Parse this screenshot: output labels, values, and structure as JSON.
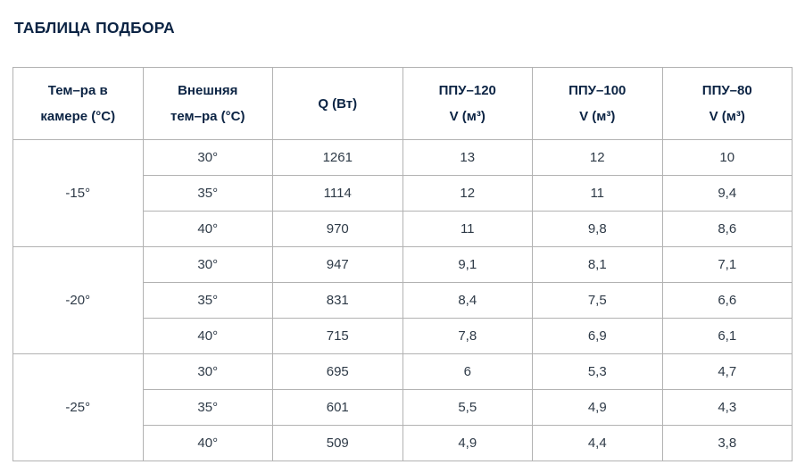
{
  "page": {
    "title": "ТАБЛИЦА ПОДБОРА"
  },
  "colors": {
    "title_text": "#0c2444",
    "header_text": "#0c2444",
    "body_text": "#2e3a47",
    "table_border": "#b2b2b2",
    "background": "#ffffff"
  },
  "table": {
    "headers": [
      {
        "lines": [
          "Тем–ра в",
          "камере (°С)"
        ]
      },
      {
        "lines": [
          "Внешняя",
          "тем–ра (°С)"
        ]
      },
      {
        "lines": [
          "Q (Вт)"
        ]
      },
      {
        "lines": [
          "ППУ–120",
          "V (м³)"
        ]
      },
      {
        "lines": [
          "ППУ–100",
          "V (м³)"
        ]
      },
      {
        "lines": [
          "ППУ–80",
          "V (м³)"
        ]
      }
    ],
    "groups": [
      {
        "chamber_temp": "-15°",
        "rows": [
          {
            "external_temp": "30°",
            "q_w": "1261",
            "ppu120": "13",
            "ppu100": "12",
            "ppu80": "10"
          },
          {
            "external_temp": "35°",
            "q_w": "1114",
            "ppu120": "12",
            "ppu100": "11",
            "ppu80": "9,4"
          },
          {
            "external_temp": "40°",
            "q_w": "970",
            "ppu120": "11",
            "ppu100": "9,8",
            "ppu80": "8,6"
          }
        ]
      },
      {
        "chamber_temp": "-20°",
        "rows": [
          {
            "external_temp": "30°",
            "q_w": "947",
            "ppu120": "9,1",
            "ppu100": "8,1",
            "ppu80": "7,1"
          },
          {
            "external_temp": "35°",
            "q_w": "831",
            "ppu120": "8,4",
            "ppu100": "7,5",
            "ppu80": "6,6"
          },
          {
            "external_temp": "40°",
            "q_w": "715",
            "ppu120": "7,8",
            "ppu100": "6,9",
            "ppu80": "6,1"
          }
        ]
      },
      {
        "chamber_temp": "-25°",
        "rows": [
          {
            "external_temp": "30°",
            "q_w": "695",
            "ppu120": "6",
            "ppu100": "5,3",
            "ppu80": "4,7"
          },
          {
            "external_temp": "35°",
            "q_w": "601",
            "ppu120": "5,5",
            "ppu100": "4,9",
            "ppu80": "4,3"
          },
          {
            "external_temp": "40°",
            "q_w": "509",
            "ppu120": "4,9",
            "ppu100": "4,4",
            "ppu80": "3,8"
          }
        ]
      }
    ]
  }
}
